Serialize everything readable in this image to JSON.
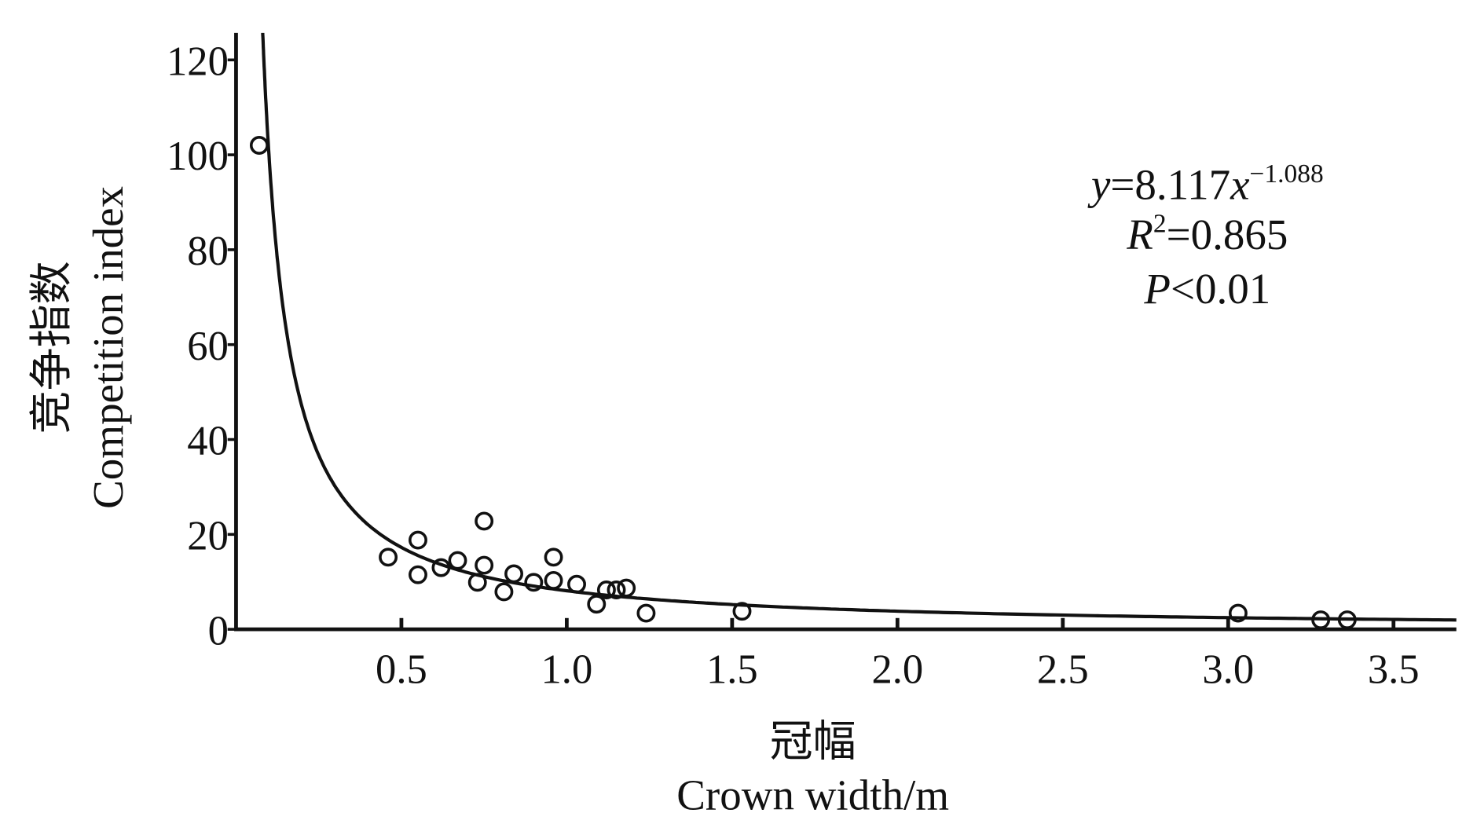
{
  "chart_data": {
    "type": "scatter",
    "xlabel_cn": "冠幅",
    "xlabel": "Crown width/m",
    "ylabel_cn": "竞争指数",
    "ylabel": "Competition index",
    "xlim": [
      0,
      3.69
    ],
    "ylim": [
      0,
      125.7
    ],
    "xticks": [
      "0.5",
      "1.0",
      "1.5",
      "2.0",
      "2.5",
      "3.0",
      "3.5"
    ],
    "xtick_values": [
      0.5,
      1.0,
      1.5,
      2.0,
      2.5,
      3.0,
      3.5
    ],
    "yticks": [
      "0",
      "20",
      "40",
      "60",
      "80",
      "100",
      "120"
    ],
    "ytick_values": [
      0,
      20,
      40,
      60,
      80,
      100,
      120
    ],
    "points": [
      {
        "x": 0.07,
        "y": 102
      },
      {
        "x": 0.46,
        "y": 15.2
      },
      {
        "x": 0.55,
        "y": 18.8
      },
      {
        "x": 0.55,
        "y": 11.5
      },
      {
        "x": 0.62,
        "y": 13.0
      },
      {
        "x": 0.67,
        "y": 14.5
      },
      {
        "x": 0.75,
        "y": 22.8
      },
      {
        "x": 0.75,
        "y": 13.5
      },
      {
        "x": 0.73,
        "y": 9.9
      },
      {
        "x": 0.81,
        "y": 7.9
      },
      {
        "x": 0.84,
        "y": 11.7
      },
      {
        "x": 0.9,
        "y": 9.9
      },
      {
        "x": 0.96,
        "y": 15.2
      },
      {
        "x": 0.96,
        "y": 10.3
      },
      {
        "x": 1.03,
        "y": 9.5
      },
      {
        "x": 1.09,
        "y": 5.3
      },
      {
        "x": 1.12,
        "y": 8.3
      },
      {
        "x": 1.15,
        "y": 8.3
      },
      {
        "x": 1.18,
        "y": 8.7
      },
      {
        "x": 1.24,
        "y": 3.4
      },
      {
        "x": 1.53,
        "y": 3.8
      },
      {
        "x": 3.03,
        "y": 3.4
      },
      {
        "x": 3.28,
        "y": 2.0
      },
      {
        "x": 3.36,
        "y": 2.0
      }
    ],
    "fit": {
      "a": 8.117,
      "b": -1.088,
      "type": "power"
    },
    "annotation": {
      "eq_y": "y",
      "eq_mid": "=8.117",
      "eq_x": "x",
      "eq_exp": "−1.088",
      "r_label": "R",
      "r_sup": "2",
      "r_value": "=0.865",
      "p_label": "P",
      "p_value": "<0.01"
    }
  }
}
